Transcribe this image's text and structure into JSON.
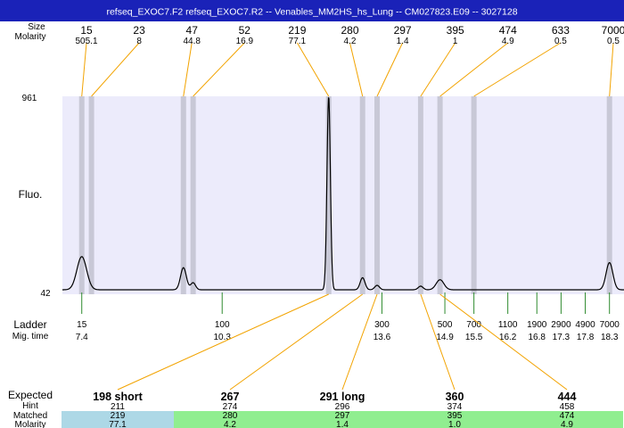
{
  "header": {
    "title": "refseq_EXOC7.F2  refseq_EXOC7.R2 -- Venables_MM2HS_hs_Lung -- CM027823.E09 -- 3027128",
    "background_color": "#1a22b8"
  },
  "labels": {
    "size_partial": "Size",
    "molarity": "Molarity",
    "fluo": "Fluo.",
    "ladder": "Ladder",
    "mig_time": "Mig. time",
    "expected": "Expected",
    "hint": "Hint",
    "matched": "Matched",
    "molarity_bottom": "Molarity"
  },
  "chart_data": {
    "type": "line",
    "y_axis": {
      "max_label": "961",
      "min_label": "42",
      "range": [
        42,
        961
      ]
    },
    "x_axis": {
      "range_mig_time": [
        7.0,
        18.6
      ]
    },
    "colors": {
      "plot_background": "#ecebfb",
      "band": "#c8c8d6",
      "trace": "#000000",
      "peak_connector": "#f2a300",
      "ladder_tick": "#2e8b2e",
      "matched_primary": "#add8e6",
      "matched_other": "#90ee90"
    },
    "top_peaks": [
      {
        "size": "15",
        "molarity": "505.1",
        "mig_time": 7.4
      },
      {
        "size": "23",
        "molarity": "8",
        "mig_time": 7.6
      },
      {
        "size": "47",
        "molarity": "44.8",
        "mig_time": 9.5
      },
      {
        "size": "52",
        "molarity": "16.9",
        "mig_time": 9.7
      },
      {
        "size": "219",
        "molarity": "77.1",
        "mig_time": 12.5
      },
      {
        "size": "280",
        "molarity": "4.2",
        "mig_time": 13.2
      },
      {
        "size": "297",
        "molarity": "1.4",
        "mig_time": 13.5
      },
      {
        "size": "395",
        "molarity": "1",
        "mig_time": 14.4
      },
      {
        "size": "474",
        "molarity": "4.9",
        "mig_time": 14.8
      },
      {
        "size": "633",
        "molarity": "0.5",
        "mig_time": 15.5
      },
      {
        "size": "7000",
        "molarity": "0.5",
        "mig_time": 18.3
      }
    ],
    "trace_peaks": [
      {
        "mig_time": 7.4,
        "height": 165,
        "width": 0.1
      },
      {
        "mig_time": 9.5,
        "height": 110,
        "width": 0.06
      },
      {
        "mig_time": 9.7,
        "height": 35,
        "width": 0.05
      },
      {
        "mig_time": 12.5,
        "height": 961,
        "width": 0.035
      },
      {
        "mig_time": 13.2,
        "height": 60,
        "width": 0.05
      },
      {
        "mig_time": 13.5,
        "height": 22,
        "width": 0.05
      },
      {
        "mig_time": 14.4,
        "height": 18,
        "width": 0.05
      },
      {
        "mig_time": 14.8,
        "height": 50,
        "width": 0.08
      },
      {
        "mig_time": 18.3,
        "height": 135,
        "width": 0.07
      }
    ],
    "ladder": [
      {
        "size": "15",
        "mig_time": "7.4"
      },
      {
        "size": "100",
        "mig_time": "10.3"
      },
      {
        "size": "300",
        "mig_time": "13.6"
      },
      {
        "size": "500",
        "mig_time": "14.9"
      },
      {
        "size": "700",
        "mig_time": "15.5"
      },
      {
        "size": "1100",
        "mig_time": "16.2"
      },
      {
        "size": "1900",
        "mig_time": "16.8"
      },
      {
        "size": "2900",
        "mig_time": "17.3"
      },
      {
        "size": "4900",
        "mig_time": "17.8"
      },
      {
        "size": "7000",
        "mig_time": "18.3"
      }
    ],
    "expected": [
      {
        "label": "198 short",
        "hint": "211",
        "matched": "219",
        "molarity": "77.1",
        "primary": true,
        "matched_peak_time": 12.5
      },
      {
        "label": "267",
        "hint": "274",
        "matched": "280",
        "molarity": "4.2",
        "primary": false,
        "matched_peak_time": 13.2
      },
      {
        "label": "291 long",
        "hint": "296",
        "matched": "297",
        "molarity": "1.4",
        "primary": false,
        "matched_peak_time": 13.5
      },
      {
        "label": "360",
        "hint": "374",
        "matched": "395",
        "molarity": "1.0",
        "primary": false,
        "matched_peak_time": 14.4
      },
      {
        "label": "444",
        "hint": "458",
        "matched": "474",
        "molarity": "4.9",
        "primary": false,
        "matched_peak_time": 14.8
      }
    ]
  }
}
